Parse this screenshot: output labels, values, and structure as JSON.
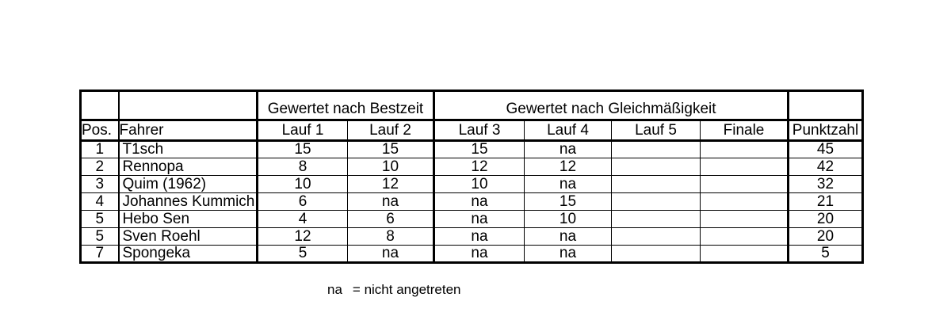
{
  "table": {
    "group_headers": {
      "bestzeit": "Gewertet nach Bestzeit",
      "gleichmaessigkeit": "Gewertet nach Gleichmäßigkeit"
    },
    "columns": [
      "Pos.",
      "Fahrer",
      "Lauf 1",
      "Lauf 2",
      "Lauf 3",
      "Lauf 4",
      "Lauf 5",
      "Finale",
      "Punktzahl"
    ],
    "rows": [
      [
        "1",
        "T1sch",
        "15",
        "15",
        "15",
        "na",
        "",
        "",
        "45"
      ],
      [
        "2",
        "Rennopa",
        "8",
        "10",
        "12",
        "12",
        "",
        "",
        "42"
      ],
      [
        "3",
        "Quim (1962)",
        "10",
        "12",
        "10",
        "na",
        "",
        "",
        "32"
      ],
      [
        "4",
        "Johannes Kummich",
        "6",
        "na",
        "na",
        "15",
        "",
        "",
        "21"
      ],
      [
        "5",
        "Hebo Sen",
        "4",
        "6",
        "na",
        "10",
        "",
        "",
        "20"
      ],
      [
        "5",
        "Sven Roehl",
        "12",
        "8",
        "na",
        "na",
        "",
        "",
        "20"
      ],
      [
        "7",
        "Spongeka",
        "5",
        "na",
        "na",
        "na",
        "",
        "",
        "5"
      ]
    ]
  },
  "footnote": {
    "abbr": "na",
    "text": "= nicht angetreten"
  },
  "colors": {
    "text": "#000000",
    "border": "#000000",
    "background": "#ffffff"
  }
}
